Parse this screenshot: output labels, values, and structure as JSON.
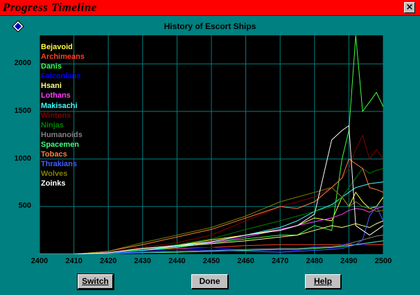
{
  "window": {
    "title": "Progress Timeline",
    "close_label": "×"
  },
  "buttons": {
    "switch": "Switch",
    "done": "Done",
    "help": "Help"
  },
  "chart_data": {
    "type": "line",
    "title": "History of Escort Ships",
    "xlabel": "",
    "ylabel": "",
    "xlim": [
      2400,
      2500
    ],
    "ylim": [
      0,
      2300
    ],
    "xticks": [
      2400,
      2410,
      2420,
      2430,
      2440,
      2450,
      2460,
      2470,
      2480,
      2490,
      2500
    ],
    "yticks": [
      500,
      1000,
      1500,
      2000
    ],
    "grid": true,
    "legend_position": "top-left",
    "x": [
      2400,
      2410,
      2420,
      2430,
      2440,
      2450,
      2460,
      2470,
      2475,
      2480,
      2485,
      2488,
      2490,
      2492,
      2494,
      2496,
      2498,
      2500
    ],
    "series": [
      {
        "name": "Bejavoid",
        "color": "#ffff40",
        "values": [
          0,
          0,
          20,
          60,
          90,
          150,
          200,
          260,
          300,
          380,
          350,
          600,
          500,
          650,
          550,
          480,
          500,
          600
        ]
      },
      {
        "name": "Archimeans",
        "color": "#ff4020",
        "values": [
          0,
          0,
          15,
          40,
          60,
          70,
          90,
          100,
          100,
          100,
          100,
          100,
          100,
          100,
          100,
          100,
          100,
          100
        ]
      },
      {
        "name": "Danis",
        "color": "#40ff40",
        "values": [
          0,
          0,
          10,
          40,
          70,
          120,
          160,
          200,
          200,
          300,
          250,
          1000,
          1300,
          2300,
          1500,
          1600,
          1700,
          1550
        ]
      },
      {
        "name": "Falconians",
        "color": "#0000ff",
        "values": [
          0,
          0,
          10,
          30,
          50,
          70,
          40,
          30,
          40,
          80,
          60,
          100,
          120,
          90,
          100,
          110,
          130,
          140
        ]
      },
      {
        "name": "Hsani",
        "color": "#ffff80",
        "values": [
          0,
          0,
          20,
          50,
          80,
          110,
          140,
          180,
          200,
          250,
          300,
          280,
          300,
          320,
          300,
          280,
          320,
          350
        ]
      },
      {
        "name": "Lothans",
        "color": "#ff40ff",
        "values": [
          0,
          0,
          20,
          50,
          90,
          120,
          180,
          260,
          300,
          340,
          380,
          420,
          460,
          480,
          470,
          440,
          480,
          500
        ]
      },
      {
        "name": "Makisachi",
        "color": "#40ffff",
        "values": [
          0,
          0,
          15,
          40,
          80,
          130,
          200,
          280,
          350,
          450,
          520,
          600,
          650,
          700,
          720,
          740,
          750,
          760
        ]
      },
      {
        "name": "Wintons",
        "color": "#800000",
        "values": [
          0,
          0,
          20,
          70,
          120,
          200,
          350,
          500,
          550,
          600,
          700,
          800,
          900,
          1100,
          1250,
          1000,
          1100,
          1000
        ]
      },
      {
        "name": "Ninjas",
        "color": "#008000",
        "values": [
          0,
          0,
          15,
          50,
          100,
          160,
          260,
          350,
          400,
          450,
          500,
          600,
          700,
          800,
          900,
          850,
          880,
          900
        ]
      },
      {
        "name": "Humanoids",
        "color": "#808080",
        "values": [
          0,
          0,
          5,
          20,
          30,
          40,
          50,
          60,
          60,
          70,
          80,
          90,
          110,
          130,
          150,
          170,
          190,
          200
        ]
      },
      {
        "name": "Spacemen",
        "color": "#40ff80",
        "values": [
          0,
          0,
          5,
          15,
          20,
          30,
          40,
          50,
          50,
          60,
          70,
          80,
          90,
          100,
          110,
          120,
          130,
          140
        ]
      },
      {
        "name": "Tobacs",
        "color": "#ff8040",
        "values": [
          0,
          0,
          30,
          100,
          180,
          260,
          380,
          500,
          480,
          550,
          700,
          800,
          1000,
          950,
          900,
          700,
          680,
          650
        ]
      },
      {
        "name": "Thrakians",
        "color": "#4060ff",
        "values": [
          0,
          0,
          10,
          20,
          30,
          40,
          30,
          20,
          30,
          40,
          50,
          60,
          80,
          100,
          150,
          400,
          500,
          350
        ]
      },
      {
        "name": "Wolves",
        "color": "#808000",
        "values": [
          0,
          0,
          30,
          120,
          200,
          280,
          400,
          550,
          600,
          650,
          700,
          600,
          500,
          550,
          500,
          480,
          450,
          460
        ]
      },
      {
        "name": "Zoinks",
        "color": "#ffffff",
        "values": [
          0,
          0,
          15,
          60,
          90,
          130,
          200,
          250,
          300,
          420,
          1200,
          1300,
          1350,
          300,
          250,
          200,
          250,
          300
        ]
      }
    ]
  }
}
